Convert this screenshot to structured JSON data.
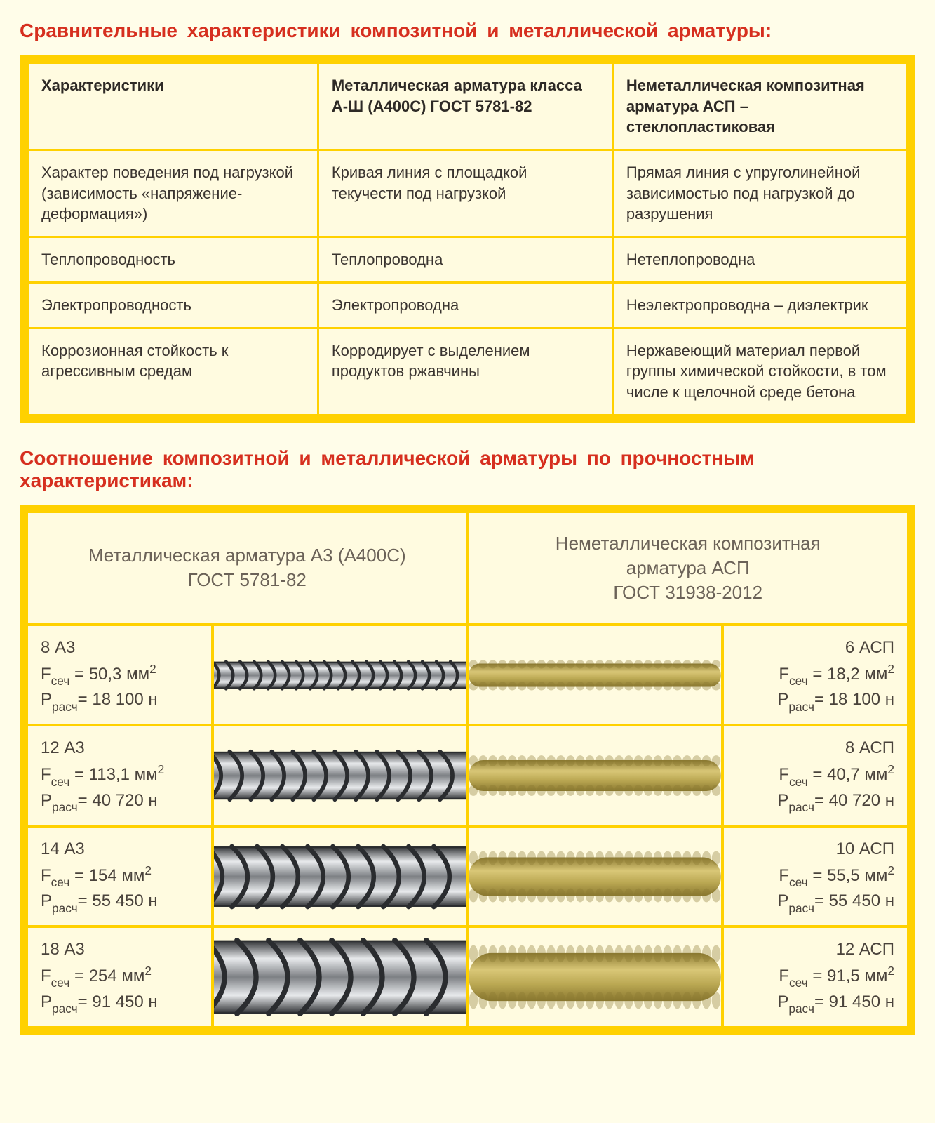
{
  "colors": {
    "page_bg": "#fffde9",
    "accent_yellow": "#ffd100",
    "panel_bg": "#fffbe0",
    "title_red": "#d62f1f",
    "text": "#3a3430",
    "header_grey": "#6b6258",
    "metal_light": "#e8eaec",
    "metal_dark": "#2a2c2f",
    "metal_mid": "#7d8084",
    "fiber_light": "#d9c777",
    "fiber_dark": "#8a7830",
    "fiber_mid": "#bba853"
  },
  "section1_title": "Сравнительные   характеристики  композитной  и металлической арматуры:",
  "comparison_table": {
    "headers": [
      "Характеристики",
      "Металлическая арматура класса А-Ш (А400С) ГОСТ 5781-82",
      "Неметаллическая композитная арматура АСП – стеклопластиковая"
    ],
    "rows": [
      [
        "Характер поведения под нагрузкой (зависимость «напряжение-деформация»)",
        "Кривая линия с площадкой текучести под нагрузкой",
        "Прямая линия с упруголинейной зависимостью под нагрузкой до разрушения"
      ],
      [
        "Теплопроводность",
        "Теплопроводна",
        "Нетеплопроводна"
      ],
      [
        "Электропроводность",
        "Электропроводна",
        "Неэлектропроводна – диэлектрик"
      ],
      [
        "Коррозионная стойкость к агрессивным средам",
        "Корродирует с выделением продуктов ржавчины",
        "Нержавеющий материал первой группы химической стойкости, в том числе к щелочной среде бетона"
      ]
    ]
  },
  "section2_title": "Соотношение  композитной  и металлической  арматуры по прочностным характеристикам:",
  "strength_table": {
    "metal_header": "Металлическая арматура А3 (А400С)\nГОСТ 5781-82",
    "fiber_header": "Неметаллическая композитная\nарматура АСП\nГОСТ 31938-2012",
    "F_prefix": "F",
    "F_sub": "сеч",
    "F_unit": "мм",
    "F_sup": "2",
    "P_prefix": "P",
    "P_sub": "расч",
    "P_unit": "н",
    "rows": [
      {
        "metal": {
          "name": "8 А3",
          "F": "50,3",
          "P": "18 100",
          "thickness": 0.35,
          "ribs": 18
        },
        "fiber": {
          "name": "6 АСП",
          "F": "18,2",
          "P": "18 100",
          "thickness": 0.3
        }
      },
      {
        "metal": {
          "name": "12 А3",
          "F": "113,1",
          "P": "40 720",
          "thickness": 0.62,
          "ribs": 12
        },
        "fiber": {
          "name": "8 АСП",
          "F": "40,7",
          "P": "40 720",
          "thickness": 0.4
        }
      },
      {
        "metal": {
          "name": "14 А3",
          "F": "154",
          "P": "55 450",
          "thickness": 0.78,
          "ribs": 10
        },
        "fiber": {
          "name": "10 АСП",
          "F": "55,5",
          "P": "55 450",
          "thickness": 0.5
        }
      },
      {
        "metal": {
          "name": "18 А3",
          "F": "254",
          "P": "91 450",
          "thickness": 0.95,
          "ribs": 8
        },
        "fiber": {
          "name": "12 АСП",
          "F": "91,5",
          "P": "91 450",
          "thickness": 0.62
        }
      }
    ]
  }
}
